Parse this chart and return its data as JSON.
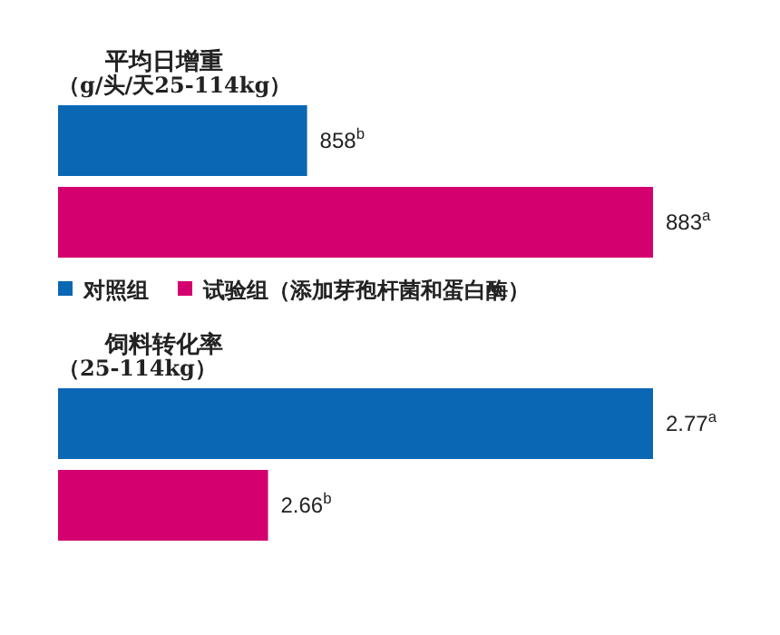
{
  "chart_data": [
    {
      "type": "bar",
      "orientation": "horizontal",
      "xlim": [
        840,
        883
      ],
      "title": "平均日增重",
      "subtitle": "（g/头/天25-114kg）",
      "categories": [
        null
      ],
      "legend": "bottom",
      "series": [
        {
          "name": "对照组",
          "color": "#0a67b4",
          "values": [
            858
          ],
          "value_labels": [
            "858$^{b}$"
          ]
        },
        {
          "name": "试验组（添加芽孢杆菌和蛋白酶）",
          "color": "#d5006f",
          "values": [
            883
          ],
          "value_labels": [
            "883$^{a}$"
          ]
        }
      ]
    },
    {
      "type": "bar",
      "orientation": "horizontal",
      "xlim": [
        2.6,
        2.77
      ],
      "title": "饲料转化率",
      "subtitle": "（25-114kg）",
      "categories": [
        null
      ],
      "series": [
        {
          "color": "#0a67b4",
          "values": [
            2.77
          ],
          "value_labels": [
            "2.77$^{a}$"
          ]
        },
        {
          "color": "#d5006f",
          "values": [
            2.66
          ],
          "value_labels": [
            "2.66$^{b}$"
          ]
        }
      ]
    }
  ]
}
